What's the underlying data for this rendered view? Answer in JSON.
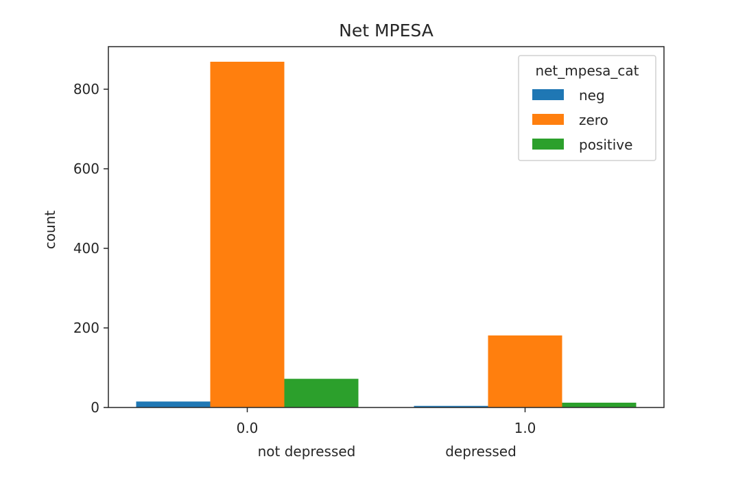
{
  "chart_data": {
    "type": "bar",
    "title": "Net MPESA",
    "xlabel": "",
    "ylabel": "count",
    "categories": [
      "0.0",
      "1.0"
    ],
    "annotations": [
      "not depressed",
      "depressed"
    ],
    "yticks": [
      0,
      200,
      400,
      600,
      800
    ],
    "ylim": [
      0,
      907
    ],
    "legend": {
      "title": "net_mpesa_cat",
      "placement": "upper right"
    },
    "grid": false,
    "series": [
      {
        "name": "neg",
        "color": "#1f77b4",
        "values": [
          15,
          4
        ]
      },
      {
        "name": "zero",
        "color": "#ff7f0e",
        "values": [
          869,
          181
        ]
      },
      {
        "name": "positive",
        "color": "#2ca02c",
        "values": [
          72,
          12
        ]
      }
    ]
  }
}
